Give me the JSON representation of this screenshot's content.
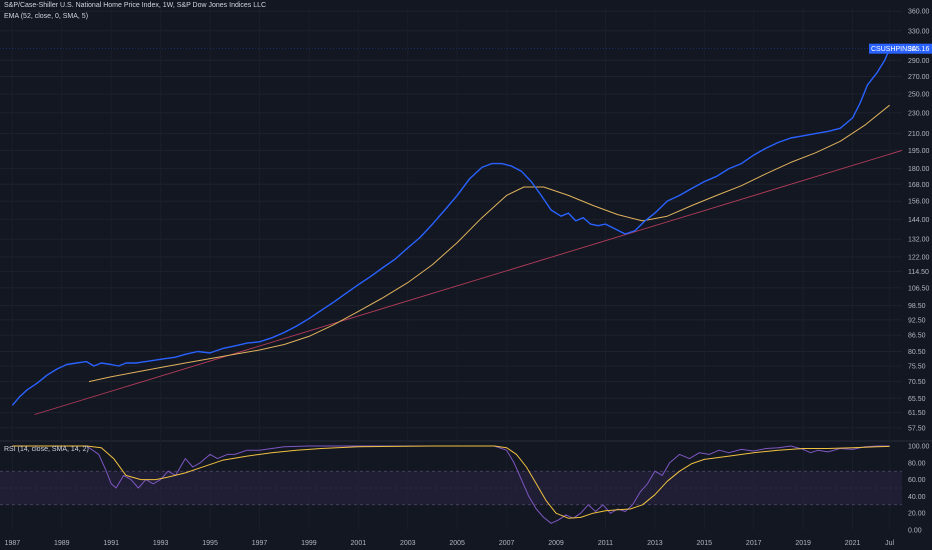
{
  "legend": {
    "main_title": "S&P/Case-Shiller U.S. National Home Price Index, 1W, S&P Dow Jones Indices LLC",
    "ema_title": "EMA (52, close, 0, SMA, 5)",
    "rsi_title": "RSI (14, close, SMA, 14, 2)"
  },
  "colors": {
    "background": "#131722",
    "price_line": "#2962ff",
    "ema_line": "#e0b25c",
    "trend_line": "#b23c5a",
    "rsi_line": "#7e57c2",
    "rsi_ma_line": "#f0c040",
    "rsi_band": "#2a2444",
    "price_tag": "#2962ff"
  },
  "price_tag": {
    "symbol": "CSUSHPINSA",
    "value": "305.16"
  },
  "chart_data": [
    {
      "type": "line",
      "title": "S&P/Case-Shiller U.S. National Home Price Index, 1W, S&P Dow Jones Indices LLC",
      "scale": "log",
      "y_ticks": [
        "360.00",
        "330.00",
        "290.00",
        "270.00",
        "250.00",
        "230.00",
        "210.00",
        "195.00",
        "180.00",
        "168.00",
        "156.00",
        "144.00",
        "132.00",
        "122.00",
        "114.50",
        "106.50",
        "98.50",
        "92.50",
        "86.50",
        "80.50",
        "75.50",
        "70.50",
        "65.50",
        "61.50",
        "57.50"
      ],
      "x_ticks": [
        "1987",
        "1989",
        "1991",
        "1993",
        "1995",
        "1997",
        "1999",
        "2001",
        "2003",
        "2005",
        "2007",
        "2009",
        "2011",
        "2013",
        "2015",
        "2017",
        "2019",
        "2021",
        "Jul"
      ],
      "ylim": [
        55,
        365
      ],
      "xlim": [
        1986.5,
        2023.0
      ],
      "series": [
        {
          "name": "CSUSHPINSA",
          "x": [
            1987.0,
            1987.3,
            1987.6,
            1988.0,
            1988.4,
            1988.8,
            1989.2,
            1989.6,
            1990.0,
            1990.3,
            1990.6,
            1991.0,
            1991.3,
            1991.6,
            1992.0,
            1992.4,
            1992.8,
            1993.2,
            1993.6,
            1994.0,
            1994.5,
            1995.0,
            1995.5,
            1996.0,
            1996.5,
            1997.0,
            1997.5,
            1998.0,
            1998.5,
            1999.0,
            1999.5,
            2000.0,
            2000.5,
            2001.0,
            2001.5,
            2002.0,
            2002.5,
            2003.0,
            2003.5,
            2004.0,
            2004.5,
            2005.0,
            2005.5,
            2006.0,
            2006.4,
            2006.8,
            2007.2,
            2007.6,
            2008.0,
            2008.4,
            2008.8,
            2009.2,
            2009.5,
            2009.8,
            2010.1,
            2010.4,
            2010.7,
            2011.0,
            2011.4,
            2011.8,
            2012.2,
            2012.6,
            2013.0,
            2013.5,
            2014.0,
            2014.5,
            2015.0,
            2015.5,
            2016.0,
            2016.5,
            2017.0,
            2017.5,
            2018.0,
            2018.5,
            2019.0,
            2019.5,
            2020.0,
            2020.5,
            2021.0,
            2021.3,
            2021.6,
            2022.0,
            2022.3,
            2022.5
          ],
          "values": [
            63.5,
            66.0,
            68.0,
            70.0,
            72.5,
            74.5,
            76.0,
            76.5,
            77.0,
            75.5,
            76.5,
            76.0,
            75.5,
            76.5,
            76.5,
            77.0,
            77.5,
            78.0,
            78.5,
            79.5,
            80.5,
            80.0,
            81.5,
            82.5,
            83.5,
            84.0,
            85.5,
            87.5,
            90.0,
            93.0,
            96.5,
            100.0,
            104.0,
            108.0,
            112.0,
            116.5,
            121.0,
            127.0,
            133.0,
            141.0,
            150.0,
            160.0,
            172.0,
            181.0,
            184.0,
            184.0,
            182.0,
            178.0,
            170.0,
            160.0,
            150.0,
            146.0,
            148.0,
            143.0,
            145.0,
            141.0,
            140.0,
            141.0,
            138.0,
            135.0,
            137.0,
            143.0,
            148.0,
            156.0,
            160.0,
            165.0,
            170.0,
            174.0,
            180.0,
            184.0,
            191.0,
            197.0,
            202.0,
            206.0,
            208.0,
            210.0,
            212.0,
            215.0,
            225.0,
            240.0,
            260.0,
            275.0,
            290.0,
            305.16
          ]
        },
        {
          "name": "EMA",
          "x": [
            1990.1,
            1991.0,
            1992.0,
            1993.0,
            1994.0,
            1995.0,
            1996.0,
            1997.0,
            1998.0,
            1999.0,
            2000.0,
            2001.0,
            2002.0,
            2003.0,
            2004.0,
            2005.0,
            2006.0,
            2007.0,
            2007.7,
            2008.5,
            2009.5,
            2010.5,
            2011.5,
            2012.5,
            2013.5,
            2014.5,
            2015.5,
            2016.5,
            2017.5,
            2018.5,
            2019.5,
            2020.5,
            2021.5,
            2022.5
          ],
          "values": [
            70.5,
            72.0,
            73.5,
            75.0,
            76.5,
            78.0,
            79.5,
            81.0,
            83.0,
            86.0,
            90.5,
            96.0,
            102.0,
            109.0,
            118.0,
            130.0,
            145.0,
            160.0,
            166.0,
            166.0,
            160.0,
            153.0,
            147.0,
            143.0,
            146.0,
            153.0,
            160.0,
            167.0,
            176.0,
            185.0,
            193.0,
            203.0,
            218.0,
            238.0
          ]
        },
        {
          "name": "Trend",
          "x": [
            1987.9,
            2023.0
          ],
          "values": [
            61.0,
            195.0
          ]
        }
      ]
    },
    {
      "type": "line",
      "title": "RSI (14, close, SMA, 14, 2)",
      "y_ticks": [
        "100.00",
        "80.00",
        "60.00",
        "40.00",
        "20.00",
        "0.00"
      ],
      "ylim": [
        0,
        100
      ],
      "band": [
        30,
        70
      ],
      "xlim": [
        1986.5,
        2023.0
      ],
      "series": [
        {
          "name": "RSI",
          "x": [
            1987.0,
            1989.0,
            1990.0,
            1990.5,
            1990.8,
            1991.0,
            1991.2,
            1991.5,
            1991.8,
            1992.1,
            1992.4,
            1992.7,
            1993.0,
            1993.3,
            1993.6,
            1994.0,
            1994.3,
            1994.6,
            1995.0,
            1995.3,
            1995.7,
            1996.0,
            1996.5,
            1997.0,
            1997.5,
            1998.0,
            1999.0,
            2000.0,
            2003.0,
            2006.0,
            2006.5,
            2007.0,
            2007.3,
            2007.6,
            2007.9,
            2008.2,
            2008.5,
            2008.8,
            2009.1,
            2009.4,
            2009.7,
            2010.0,
            2010.3,
            2010.6,
            2010.9,
            2011.2,
            2011.5,
            2011.8,
            2012.1,
            2012.4,
            2012.7,
            2013.0,
            2013.3,
            2013.6,
            2014.0,
            2014.4,
            2014.8,
            2015.2,
            2015.6,
            2016.0,
            2016.5,
            2017.0,
            2017.5,
            2018.0,
            2018.5,
            2019.0,
            2019.3,
            2019.6,
            2020.0,
            2020.5,
            2021.0,
            2021.5,
            2022.0,
            2022.5
          ],
          "values": [
            100,
            100,
            100,
            90,
            70,
            55,
            50,
            65,
            60,
            50,
            60,
            55,
            60,
            70,
            65,
            85,
            75,
            80,
            90,
            85,
            90,
            90,
            95,
            95,
            97,
            99,
            100,
            100,
            100,
            100,
            100,
            95,
            80,
            60,
            40,
            25,
            15,
            8,
            12,
            18,
            14,
            20,
            30,
            22,
            30,
            20,
            25,
            22,
            30,
            45,
            55,
            70,
            65,
            80,
            90,
            85,
            92,
            90,
            95,
            92,
            96,
            94,
            97,
            98,
            100,
            96,
            92,
            95,
            93,
            97,
            96,
            99,
            100,
            100
          ]
        },
        {
          "name": "RSI-based MA",
          "x": [
            1987.0,
            1989.0,
            1990.0,
            1990.6,
            1991.1,
            1991.6,
            1992.2,
            1992.8,
            1993.3,
            1994.0,
            1994.8,
            1995.5,
            1996.5,
            1997.5,
            1998.5,
            1999.5,
            2001.0,
            2004.0,
            2006.5,
            2007.0,
            2007.4,
            2007.8,
            2008.2,
            2008.6,
            2009.0,
            2009.5,
            2010.0,
            2010.5,
            2011.0,
            2011.5,
            2012.0,
            2012.5,
            2013.0,
            2013.5,
            2014.0,
            2014.5,
            2015.0,
            2016.0,
            2017.0,
            2018.0,
            2019.0,
            2020.0,
            2021.0,
            2022.0,
            2022.5
          ],
          "values": [
            100,
            100,
            100,
            98,
            85,
            65,
            60,
            60,
            63,
            68,
            76,
            83,
            88,
            92,
            95,
            97,
            99,
            100,
            100,
            98,
            90,
            75,
            55,
            35,
            20,
            14,
            15,
            20,
            23,
            24,
            25,
            30,
            42,
            58,
            70,
            79,
            84,
            88,
            92,
            95,
            97,
            97,
            98,
            99,
            99.5
          ]
        }
      ]
    }
  ]
}
